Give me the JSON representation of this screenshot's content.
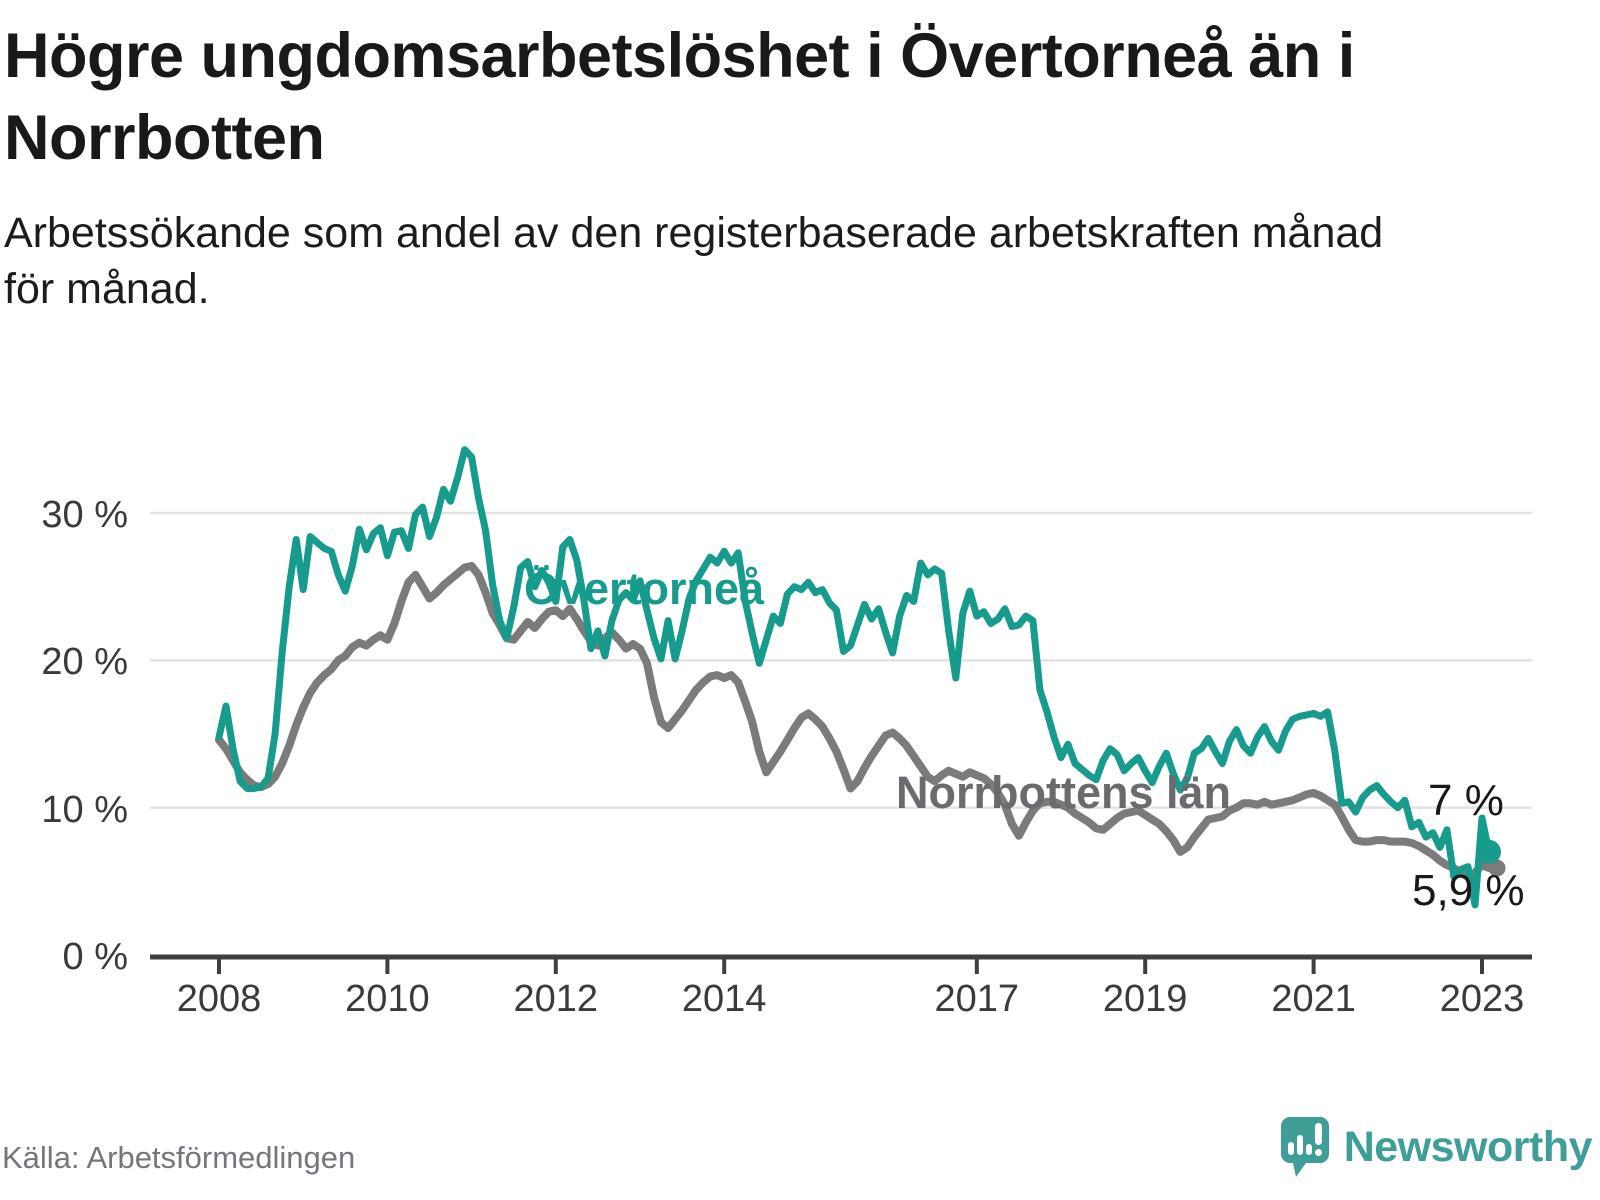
{
  "header": {
    "title_lines": [
      "Högre ungdomsarbetslöshet i Övertorneå än i",
      "Norrbotten"
    ],
    "subtitle_lines": [
      "Arbetssökande som andel av den registerbaserade arbetskraften månad",
      "för månad."
    ]
  },
  "footer": {
    "source": "Källa: Arbetsförmedlingen",
    "brand": "Newsworthy",
    "brand_color": "#3f9e97"
  },
  "chart_data": {
    "type": "line",
    "unit": "percent",
    "frequency": "monthly",
    "x_start": "2008-01",
    "x_end": "2023-02",
    "ylim": [
      0,
      35
    ],
    "grid": "horizontal",
    "gridline_color": "#e3e3e3",
    "axis_color": "#3f3f3f",
    "y_ticks": [
      {
        "value": 0,
        "label": "0 %"
      },
      {
        "value": 10,
        "label": "10 %"
      },
      {
        "value": 20,
        "label": "20 %"
      },
      {
        "value": 30,
        "label": "30 %"
      }
    ],
    "x_ticks": [
      {
        "year": 2008,
        "label": "2008"
      },
      {
        "year": 2010,
        "label": "2010"
      },
      {
        "year": 2012,
        "label": "2012"
      },
      {
        "year": 2014,
        "label": "2014"
      },
      {
        "year": 2017,
        "label": "2017"
      },
      {
        "year": 2019,
        "label": "2019"
      },
      {
        "year": 2021,
        "label": "2021"
      },
      {
        "year": 2023,
        "label": "2023"
      }
    ],
    "series": [
      {
        "name": "Övertorneå",
        "color": "#169b8d",
        "label_color": "#169b8d",
        "end_label": "7 %",
        "end_value": 7.0,
        "values": [
          14.8,
          16.9,
          14.0,
          11.8,
          11.3,
          11.3,
          11.4,
          12.0,
          15.0,
          20.5,
          25.0,
          28.2,
          24.8,
          28.4,
          28.0,
          27.6,
          27.4,
          25.8,
          24.7,
          26.4,
          28.9,
          27.5,
          28.6,
          29.0,
          27.1,
          28.7,
          28.8,
          27.6,
          29.9,
          30.4,
          28.4,
          29.7,
          31.6,
          30.8,
          32.4,
          34.3,
          33.8,
          31.0,
          28.8,
          25.1,
          22.7,
          21.5,
          23.6,
          26.3,
          26.7,
          25.0,
          26.1,
          25.3,
          24.0,
          27.7,
          28.2,
          26.8,
          24.1,
          20.8,
          22.0,
          20.3,
          22.7,
          24.1,
          24.6,
          24.1,
          25.4,
          23.4,
          21.5,
          20.1,
          22.7,
          20.1,
          22.0,
          24.2,
          25.4,
          26.2,
          27.0,
          26.6,
          27.4,
          26.6,
          27.3,
          24.0,
          21.8,
          19.8,
          21.4,
          23.0,
          22.5,
          24.5,
          25.0,
          24.8,
          25.3,
          24.6,
          24.8,
          23.9,
          23.4,
          20.6,
          21.0,
          22.4,
          23.8,
          22.8,
          23.5,
          21.9,
          20.5,
          23.0,
          24.4,
          24.0,
          26.6,
          25.8,
          26.2,
          25.9,
          22.0,
          18.8,
          23.2,
          24.7,
          23.0,
          23.3,
          22.5,
          22.8,
          23.5,
          22.3,
          22.4,
          23.0,
          22.7,
          18.0,
          16.5,
          14.8,
          13.4,
          14.3,
          13.0,
          12.6,
          12.2,
          11.9,
          13.2,
          14.0,
          13.6,
          12.5,
          13.0,
          13.4,
          12.5,
          11.7,
          12.8,
          13.7,
          12.3,
          11.2,
          12.0,
          13.7,
          14.0,
          14.7,
          13.8,
          13.0,
          14.5,
          15.3,
          14.2,
          13.7,
          14.8,
          15.5,
          14.5,
          13.9,
          15.2,
          16.0,
          16.2,
          16.3,
          16.4,
          16.2,
          16.5,
          13.9,
          10.3,
          10.4,
          9.7,
          10.7,
          11.2,
          11.5,
          10.9,
          10.4,
          10.0,
          10.5,
          8.7,
          9.0,
          8.0,
          8.3,
          7.3,
          8.5,
          5.3,
          5.8,
          6.0,
          3.4,
          9.3,
          7.0
        ]
      },
      {
        "name": "Norrbottens län",
        "color": "#7b7b7b",
        "label_color": "#6b6b6f",
        "end_label": "5,9 %",
        "end_value": 5.9,
        "values": [
          14.6,
          14.0,
          13.2,
          12.4,
          11.9,
          11.5,
          11.4,
          11.6,
          12.1,
          13.0,
          14.2,
          15.6,
          16.8,
          17.8,
          18.5,
          19.0,
          19.4,
          20.0,
          20.3,
          20.9,
          21.2,
          21.0,
          21.4,
          21.7,
          21.4,
          22.5,
          24.0,
          25.3,
          25.8,
          25.0,
          24.2,
          24.6,
          25.1,
          25.5,
          25.9,
          26.3,
          26.4,
          25.8,
          24.6,
          23.2,
          22.4,
          21.5,
          21.4,
          22.0,
          22.6,
          22.2,
          22.8,
          23.3,
          23.4,
          23.0,
          23.5,
          22.8,
          22.0,
          21.3,
          21.0,
          21.5,
          21.9,
          21.4,
          20.8,
          21.1,
          20.8,
          19.8,
          17.5,
          15.8,
          15.4,
          16.0,
          16.6,
          17.3,
          18.0,
          18.5,
          18.9,
          19.0,
          18.8,
          19.0,
          18.5,
          17.2,
          15.8,
          13.8,
          12.4,
          13.1,
          13.8,
          14.6,
          15.4,
          16.1,
          16.4,
          16.0,
          15.5,
          14.7,
          13.8,
          12.6,
          11.3,
          11.8,
          12.7,
          13.5,
          14.2,
          14.9,
          15.1,
          14.7,
          14.2,
          13.5,
          12.8,
          12.1,
          11.8,
          12.2,
          12.5,
          12.3,
          12.1,
          12.4,
          12.2,
          12.0,
          11.6,
          11.0,
          10.2,
          8.9,
          8.1,
          9.0,
          9.8,
          10.3,
          10.4,
          10.4,
          10.2,
          10.0,
          9.6,
          9.3,
          9.0,
          8.6,
          8.5,
          8.9,
          9.3,
          9.6,
          9.7,
          9.8,
          9.5,
          9.2,
          8.9,
          8.4,
          7.8,
          7.0,
          7.3,
          8.0,
          8.6,
          9.2,
          9.3,
          9.4,
          9.8,
          10.0,
          10.3,
          10.3,
          10.2,
          10.4,
          10.2,
          10.3,
          10.4,
          10.5,
          10.7,
          10.9,
          11.0,
          10.8,
          10.5,
          10.2,
          9.4,
          8.5,
          7.8,
          7.7,
          7.7,
          7.8,
          7.8,
          7.7,
          7.7,
          7.7,
          7.6,
          7.4,
          7.1,
          6.8,
          6.4,
          6.1,
          5.9,
          5.6,
          5.3,
          5.6,
          6.1,
          5.9
        ]
      }
    ]
  }
}
